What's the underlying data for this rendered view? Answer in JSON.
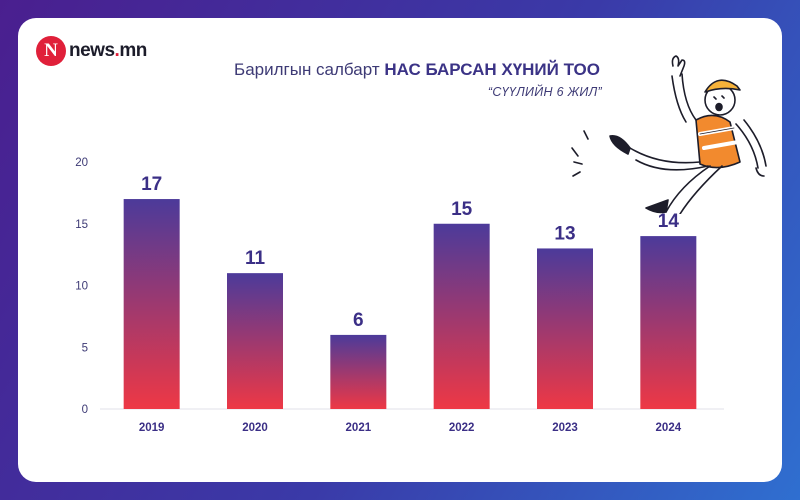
{
  "brand": {
    "logo_letter": "N",
    "name": "news",
    "dot": ".",
    "tld": "mn"
  },
  "header": {
    "title_regular": "Барилгын салбарт ",
    "title_bold": "НАС БАРСАН ХҮНИЙ ТОО",
    "subtitle": "“СҮҮЛИЙН 6 ЖИЛ”"
  },
  "colors": {
    "bar_top": "#4c3a9a",
    "bar_bottom": "#ee3845",
    "value_label": "#3b2f86",
    "axis_text": "#3d3a75"
  },
  "icons": [
    "falling-worker-illustration"
  ],
  "chart_data": {
    "type": "bar",
    "categories": [
      "2019",
      "2020",
      "2021",
      "2022",
      "2023",
      "2024"
    ],
    "values": [
      17,
      11,
      6,
      15,
      13,
      14
    ],
    "ylim": [
      0,
      20
    ],
    "yticks": [
      0,
      5,
      10,
      15,
      20
    ],
    "grid": false,
    "legend": "none",
    "data_labels": true
  }
}
